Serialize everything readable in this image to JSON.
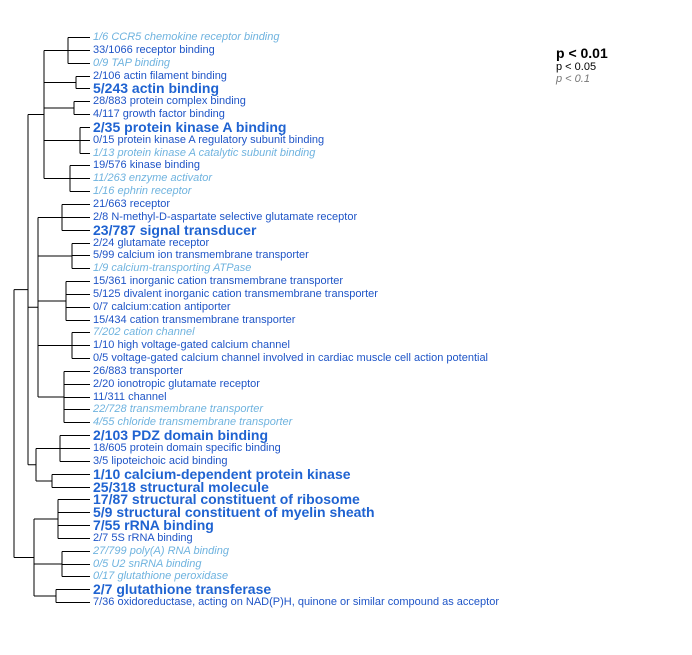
{
  "legend": {
    "l1": "p < 0.01",
    "l2": "p < 0.05",
    "l3": "p < 0.1"
  },
  "colors": {
    "strong": "#1f63d1",
    "medium": "#1f55c7",
    "weak": "#6fb3df",
    "tree": "#000000"
  },
  "terms": [
    {
      "label": "1/6 CCR5 chemokine receptor binding",
      "sig": "weak"
    },
    {
      "label": "33/1066 receptor binding",
      "sig": "medium"
    },
    {
      "label": "0/9 TAP binding",
      "sig": "weak"
    },
    {
      "label": "2/106 actin filament binding",
      "sig": "medium"
    },
    {
      "label": "5/243 actin binding",
      "sig": "strong"
    },
    {
      "label": "28/883 protein complex binding",
      "sig": "medium"
    },
    {
      "label": "4/117 growth factor binding",
      "sig": "medium"
    },
    {
      "label": "2/35 protein kinase A binding",
      "sig": "strong"
    },
    {
      "label": "0/15 protein kinase A regulatory subunit binding",
      "sig": "medium"
    },
    {
      "label": "1/13 protein kinase A catalytic subunit binding",
      "sig": "weak"
    },
    {
      "label": "19/576 kinase binding",
      "sig": "medium"
    },
    {
      "label": "11/263 enzyme activator",
      "sig": "weak"
    },
    {
      "label": "1/16 ephrin receptor",
      "sig": "weak"
    },
    {
      "label": "21/663 receptor",
      "sig": "medium"
    },
    {
      "label": "2/8 N-methyl-D-aspartate selective glutamate receptor",
      "sig": "medium"
    },
    {
      "label": "23/787 signal transducer",
      "sig": "strong"
    },
    {
      "label": "2/24 glutamate receptor",
      "sig": "medium"
    },
    {
      "label": "5/99 calcium ion transmembrane transporter",
      "sig": "medium"
    },
    {
      "label": "1/9 calcium-transporting ATPase",
      "sig": "weak"
    },
    {
      "label": "15/361 inorganic cation transmembrane transporter",
      "sig": "medium"
    },
    {
      "label": "5/125 divalent inorganic cation transmembrane transporter",
      "sig": "medium"
    },
    {
      "label": "0/7 calcium:cation antiporter",
      "sig": "medium"
    },
    {
      "label": "15/434 cation transmembrane transporter",
      "sig": "medium"
    },
    {
      "label": "7/202 cation channel",
      "sig": "weak"
    },
    {
      "label": "1/10 high voltage-gated calcium channel",
      "sig": "medium"
    },
    {
      "label": "0/5 voltage-gated calcium channel involved in cardiac muscle cell action potential",
      "sig": "medium"
    },
    {
      "label": "26/883 transporter",
      "sig": "medium"
    },
    {
      "label": "2/20 ionotropic glutamate receptor",
      "sig": "medium"
    },
    {
      "label": "11/311 channel",
      "sig": "medium"
    },
    {
      "label": "22/728 transmembrane transporter",
      "sig": "weak"
    },
    {
      "label": "4/55 chloride transmembrane transporter",
      "sig": "weak"
    },
    {
      "label": "2/103 PDZ domain binding",
      "sig": "strong"
    },
    {
      "label": "18/605 protein domain specific binding",
      "sig": "medium"
    },
    {
      "label": "3/5 lipoteichoic acid binding",
      "sig": "medium"
    },
    {
      "label": "1/10 calcium-dependent protein kinase",
      "sig": "strong"
    },
    {
      "label": "25/318 structural molecule",
      "sig": "strong"
    },
    {
      "label": "17/87 structural constituent of ribosome",
      "sig": "strong"
    },
    {
      "label": "5/9 structural constituent of myelin sheath",
      "sig": "strong"
    },
    {
      "label": "7/55 rRNA binding",
      "sig": "strong"
    },
    {
      "label": "2/7 5S rRNA binding",
      "sig": "medium"
    },
    {
      "label": "27/799 poly(A) RNA binding",
      "sig": "weak"
    },
    {
      "label": "0/5 U2 snRNA binding",
      "sig": "weak"
    },
    {
      "label": "0/17 glutathione peroxidase",
      "sig": "weak"
    },
    {
      "label": "2/7 glutathione transferase",
      "sig": "strong"
    },
    {
      "label": "7/36 oxidoreductase, acting on NAD(P)H, quinone or similar compound as acceptor",
      "sig": "medium"
    }
  ]
}
